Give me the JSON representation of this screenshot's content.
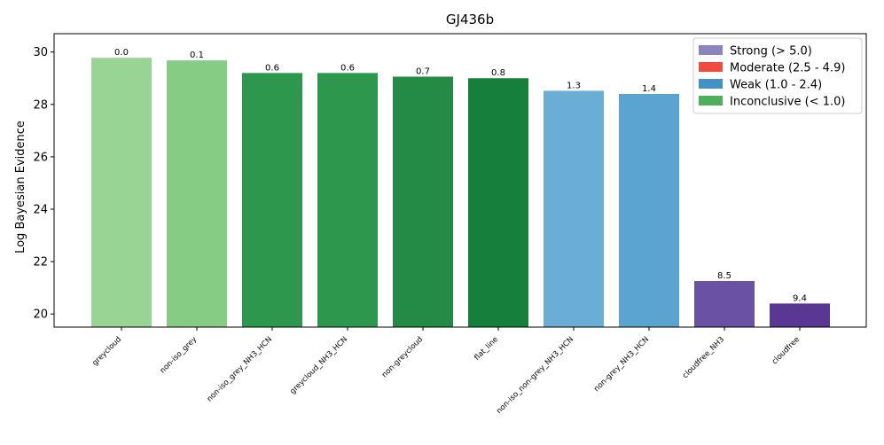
{
  "chart_data": {
    "type": "bar",
    "title": "GJ436b",
    "xlabel": "",
    "ylabel": "Log Bayesian Evidence",
    "ylim": [
      19.5,
      30.7
    ],
    "yticks": [
      20,
      22,
      24,
      26,
      28,
      30
    ],
    "grid": false,
    "legend_position": "top-right",
    "categories": [
      "greycloud",
      "non-iso_grey",
      "non-iso_grey_NH3_HCN",
      "greycloud_NH3_HCN",
      "non-greycloud",
      "flat_line",
      "non-iso_non-grey_NH3_HCN",
      "non-grey_NH3_HCN",
      "cloudfree_NH3",
      "cloudfree"
    ],
    "values": [
      29.78,
      29.68,
      29.2,
      29.2,
      29.06,
      29.0,
      28.52,
      28.4,
      21.26,
      20.4
    ],
    "value_labels": [
      "0.0",
      "0.1",
      "0.6",
      "0.6",
      "0.7",
      "0.8",
      "1.3",
      "1.4",
      "8.5",
      "9.4"
    ],
    "bar_colors": [
      "#98d594",
      "#86cc85",
      "#2e974e",
      "#2e974e",
      "#238b45",
      "#157f3b",
      "#6aaed6",
      "#5ba3d0",
      "#6a51a3",
      "#5b3794"
    ],
    "legend": [
      {
        "label": "Strong (> 5.0)",
        "color": "#8a84c0"
      },
      {
        "label": "Moderate (2.5 - 4.9)",
        "color": "#f04b3c"
      },
      {
        "label": "Weak (1.0 - 2.4)",
        "color": "#4292c6"
      },
      {
        "label": "Inconclusive (< 1.0)",
        "color": "#4daf5b"
      }
    ]
  }
}
